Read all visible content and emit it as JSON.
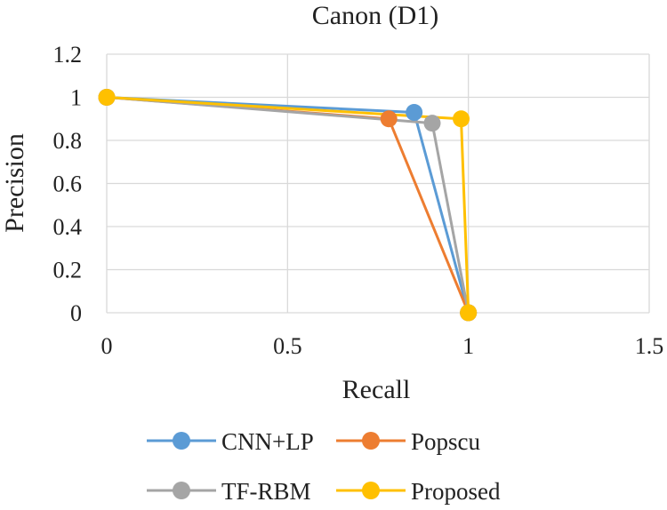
{
  "chart_data": {
    "type": "line",
    "title": "Canon (D1)",
    "xlabel": "Recall",
    "ylabel": "Precision",
    "xlim": [
      0,
      1.5
    ],
    "ylim": [
      0,
      1.2
    ],
    "xticks": [
      0,
      0.5,
      1,
      1.5
    ],
    "yticks": [
      0,
      0.2,
      0.4,
      0.6,
      0.8,
      1,
      1.2
    ],
    "xtick_labels": [
      "0",
      "0.5",
      "1",
      "1.5"
    ],
    "ytick_labels": [
      "0",
      "0.2",
      "0.4",
      "0.6",
      "0.8",
      "1",
      "1.2"
    ],
    "grid": true,
    "legend_position": "bottom",
    "series": [
      {
        "name": "CNN+LP",
        "color": "#5B9BD5",
        "x": [
          0,
          0.85,
          1
        ],
        "y": [
          1,
          0.93,
          0
        ]
      },
      {
        "name": "Popscu",
        "color": "#ED7D31",
        "x": [
          0,
          0.78,
          1
        ],
        "y": [
          1,
          0.9,
          0
        ]
      },
      {
        "name": "TF-RBM",
        "color": "#A5A5A5",
        "x": [
          0,
          0.9,
          1
        ],
        "y": [
          1,
          0.88,
          0
        ]
      },
      {
        "name": "Proposed",
        "color": "#FFC000",
        "x": [
          0,
          0.98,
          1
        ],
        "y": [
          1,
          0.9,
          0
        ]
      }
    ]
  }
}
